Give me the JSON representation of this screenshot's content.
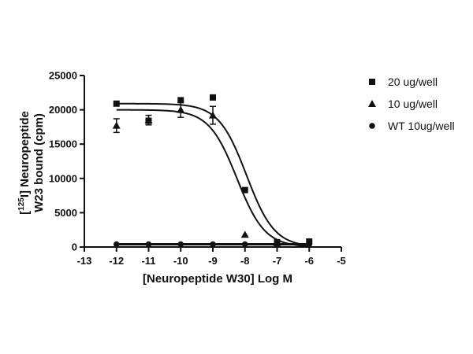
{
  "chart_data": {
    "type": "scatter",
    "xlabel": "[Neuropeptide W30] Log M",
    "ylabel_line1_pre": "[",
    "ylabel_line1_sup": "125",
    "ylabel_line1_post": "I] Neuropeptide",
    "ylabel_line2": "W23 bound (cpm)",
    "xlim": [
      -13,
      -5
    ],
    "ylim": [
      0,
      25000
    ],
    "x_ticks": [
      -13,
      -12,
      -11,
      -10,
      -9,
      -8,
      -7,
      -6,
      -5
    ],
    "y_ticks": [
      0,
      5000,
      10000,
      15000,
      20000,
      25000
    ],
    "legend_position": "top-right",
    "series": [
      {
        "name": "20 ug/well",
        "marker": "square",
        "points": [
          {
            "x": -12,
            "y": 20900
          },
          {
            "x": -11,
            "y": 18400
          },
          {
            "x": -10,
            "y": 21400
          },
          {
            "x": -9,
            "y": 21800
          },
          {
            "x": -8,
            "y": 8300
          },
          {
            "x": -7,
            "y": 700
          },
          {
            "x": -6,
            "y": 800
          }
        ],
        "fit": {
          "top": 20900,
          "bottom": 0,
          "log_ic50": -7.95,
          "hill": -1
        }
      },
      {
        "name": "10 ug/well",
        "marker": "triangle",
        "points": [
          {
            "x": -12,
            "y": 17700,
            "err": 1000
          },
          {
            "x": -11,
            "y": 18500,
            "err": 700
          },
          {
            "x": -10,
            "y": 20000,
            "err": 1100
          },
          {
            "x": -9,
            "y": 19200,
            "err": 1300
          },
          {
            "x": -8,
            "y": 1800
          },
          {
            "x": -7,
            "y": 600
          }
        ],
        "fit": {
          "top": 20000,
          "bottom": 0,
          "log_ic50": -8.25,
          "hill": -1
        }
      },
      {
        "name": "WT 10ug/well",
        "marker": "circle",
        "points": [
          {
            "x": -12,
            "y": 400
          },
          {
            "x": -11,
            "y": 400
          },
          {
            "x": -10,
            "y": 400
          },
          {
            "x": -9,
            "y": 400
          },
          {
            "x": -8,
            "y": 400
          },
          {
            "x": -7,
            "y": 400
          },
          {
            "x": -6,
            "y": 400
          }
        ],
        "flat_line": 400
      }
    ]
  }
}
